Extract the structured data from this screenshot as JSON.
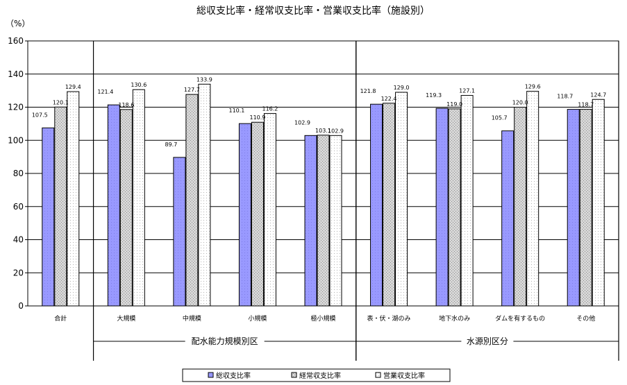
{
  "chart_data": {
    "type": "bar",
    "title": "総収支比率・経常収支比率・営業収支比率（施設別）",
    "ylabel": "（%）",
    "ylim": [
      0,
      160
    ],
    "yticks": [
      0,
      20,
      40,
      60,
      80,
      100,
      120,
      140,
      160
    ],
    "grid": true,
    "legend_position": "bottom",
    "categories": [
      "合計",
      "大規模",
      "中規模",
      "小規模",
      "極小規模",
      "表・伏・湖のみ",
      "地下水のみ",
      "ダムを有するもの",
      "その他"
    ],
    "groups": [
      {
        "label": "配水能力規模別区",
        "start": 1,
        "end": 4
      },
      {
        "label": "水源別区分",
        "start": 5,
        "end": 8
      }
    ],
    "series": [
      {
        "name": "総収支比率",
        "values": [
          107.5,
          121.4,
          89.7,
          110.1,
          102.9,
          121.8,
          119.3,
          105.7,
          118.7
        ],
        "labels": [
          "107.5",
          "121.4",
          "89.7",
          "110.1",
          "102.9",
          "121.8",
          "119.3",
          "105.7",
          "118.7"
        ],
        "color": "#9999ff"
      },
      {
        "name": "経常収支比率",
        "values": [
          120.1,
          118.6,
          127.7,
          110.9,
          103.1,
          122.4,
          119.0,
          120.0,
          118.7
        ],
        "labels": [
          "120.1",
          "118.6",
          "127.7",
          "110.9",
          "103.1",
          "122.4",
          "119.0",
          "120.0",
          "118.7"
        ],
        "color": "#cccccc"
      },
      {
        "name": "営業収支比率",
        "values": [
          129.4,
          130.6,
          133.9,
          116.2,
          102.9,
          129.0,
          127.1,
          129.6,
          124.7
        ],
        "labels": [
          "129.4",
          "130.6",
          "133.9",
          "116.2",
          "102.9",
          "129.0",
          "127.1",
          "129.6",
          "124.7"
        ],
        "color": "#ffffff"
      }
    ]
  }
}
